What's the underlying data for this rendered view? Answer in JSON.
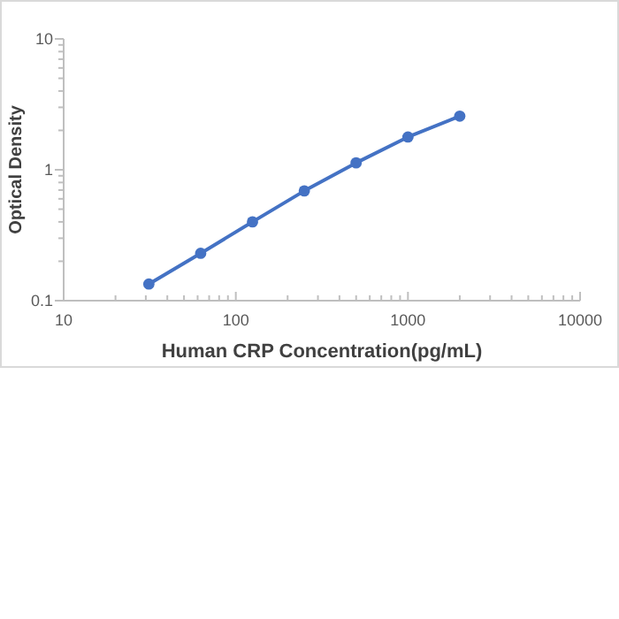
{
  "chart_data": {
    "type": "line",
    "xlabel": "Human CRP Concentration(pg/mL)",
    "ylabel": "Optical Density",
    "log": "xy",
    "marker": "circle",
    "line_style": "solid",
    "grid": false,
    "x": [
      31.25,
      62.5,
      125,
      250,
      500,
      1000,
      2000
    ],
    "series": [
      {
        "color": "#4472c4",
        "values": [
          0.134,
          0.23,
          0.4,
          0.69,
          1.13,
          1.78,
          2.57
        ]
      }
    ],
    "xlim": [
      10,
      10000
    ],
    "xticks": [
      10,
      {
        "value": 20,
        "label": null
      },
      {
        "value": 30,
        "label": null
      },
      {
        "value": 40,
        "label": null
      },
      {
        "value": 50,
        "label": null
      },
      {
        "value": 60,
        "label": null
      },
      {
        "value": 70,
        "label": null
      },
      {
        "value": 80,
        "label": null
      },
      {
        "value": 90,
        "label": null
      },
      100,
      {
        "value": 200,
        "label": null
      },
      {
        "value": 300,
        "label": null
      },
      {
        "value": 400,
        "label": null
      },
      {
        "value": 500,
        "label": null
      },
      {
        "value": 600,
        "label": null
      },
      {
        "value": 700,
        "label": null
      },
      {
        "value": 800,
        "label": null
      },
      {
        "value": 900,
        "label": null
      },
      1000,
      {
        "value": 2000,
        "label": null
      },
      {
        "value": 3000,
        "label": null
      },
      {
        "value": 4000,
        "label": null
      },
      {
        "value": 5000,
        "label": null
      },
      {
        "value": 6000,
        "label": null
      },
      {
        "value": 7000,
        "label": null
      },
      {
        "value": 8000,
        "label": null
      },
      {
        "value": 9000,
        "label": null
      },
      10000
    ],
    "ylim": [
      0.1,
      10
    ],
    "yticks": [
      0.1,
      {
        "value": 0.2,
        "label": null
      },
      {
        "value": 0.3,
        "label": null
      },
      {
        "value": 0.4,
        "label": null
      },
      {
        "value": 0.5,
        "label": null
      },
      {
        "value": 0.6,
        "label": null
      },
      {
        "value": 0.7,
        "label": null
      },
      {
        "value": 0.8,
        "label": null
      },
      {
        "value": 0.9,
        "label": null
      },
      1,
      {
        "value": 2,
        "label": null
      },
      {
        "value": 3,
        "label": null
      },
      {
        "value": 4,
        "label": null
      },
      {
        "value": 5,
        "label": null
      },
      {
        "value": 6,
        "label": null
      },
      {
        "value": 7,
        "label": null
      },
      {
        "value": 8,
        "label": null
      },
      {
        "value": 9,
        "label": null
      },
      10
    ]
  }
}
